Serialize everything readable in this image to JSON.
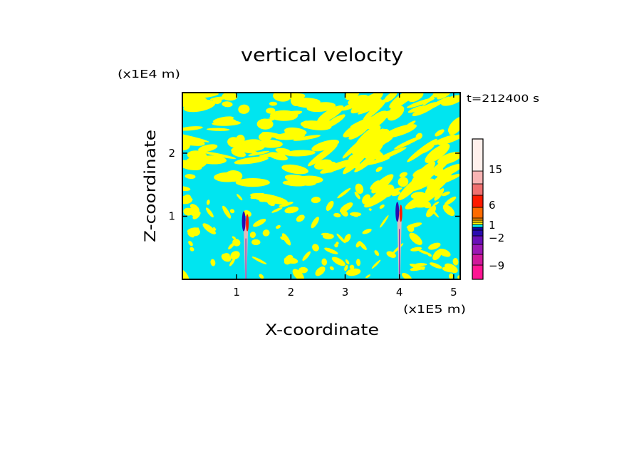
{
  "chart_data": {
    "type": "heatmap",
    "title": "vertical velocity",
    "time_label": "t=212400 s",
    "xlabel": "X-coordinate",
    "ylabel": "Z-coordinate",
    "x_scale_label": "(x1E5 m)",
    "y_scale_label": "(x1E4 m)",
    "xlim": [
      0,
      5.12
    ],
    "ylim": [
      0,
      2.96
    ],
    "x_ticks": [
      "1",
      "2",
      "3",
      "4",
      "5"
    ],
    "y_ticks": [
      "1",
      "2"
    ],
    "field_colors": {
      "downward": "#00e5f0",
      "upward": "#ffff00"
    },
    "mountain_features": [
      {
        "x": 1.17,
        "z_top": 1.1
      },
      {
        "x": 4.0,
        "z_top": 1.25
      }
    ],
    "colorbar": {
      "labels": [
        "15",
        "6",
        "1",
        "−2",
        "−9"
      ],
      "colors": [
        "#ff1493",
        "#d0189a",
        "#9c18b4",
        "#6a10b8",
        "#2a0cb0",
        "#0a08a8",
        "#00e8f0",
        "#ffff00",
        "#ffd000",
        "#ff9000",
        "#ff6a00",
        "#ff1a00",
        "#f07070",
        "#f8b4b4",
        "#fff0ec"
      ]
    }
  }
}
